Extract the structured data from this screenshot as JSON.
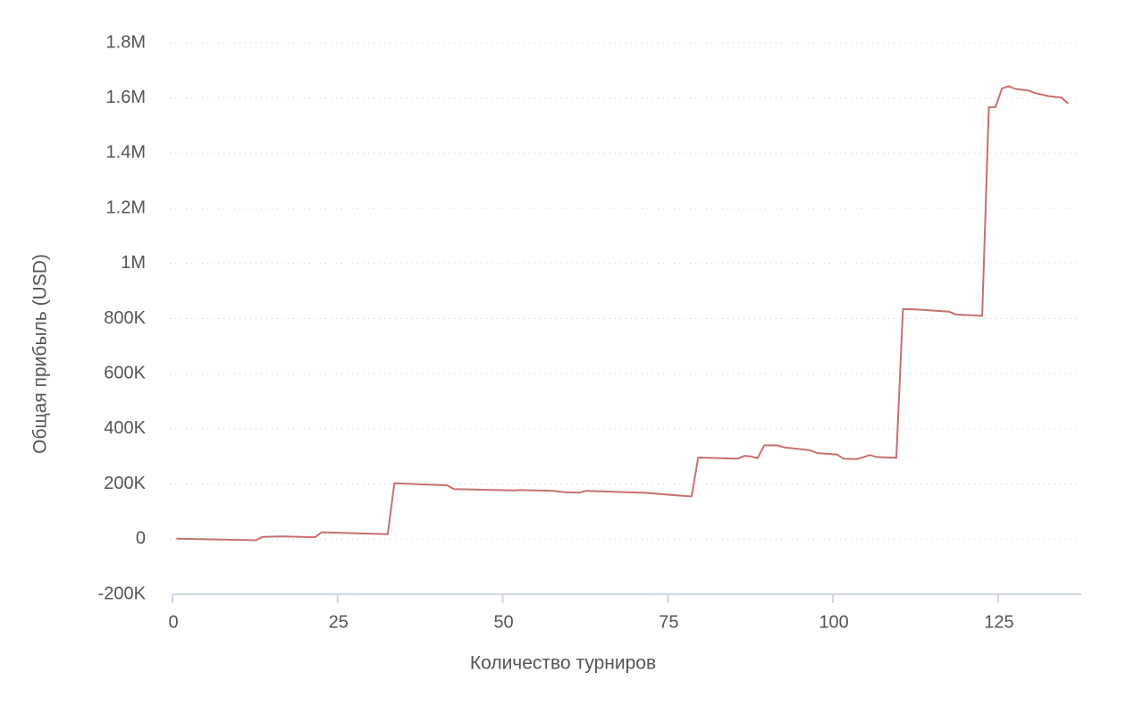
{
  "chart_data": {
    "type": "line",
    "x_label": "Количество турниров",
    "y_label": "Общая прибыль (USD)",
    "x": [
      1,
      13,
      14,
      17,
      22,
      23,
      33,
      34,
      42,
      43,
      52,
      53,
      58,
      60,
      62,
      63,
      72,
      75,
      79,
      80,
      86,
      87,
      88,
      89,
      90,
      92,
      93,
      96,
      97,
      98,
      101,
      102,
      104,
      106,
      107,
      110,
      111,
      113,
      118,
      119,
      123,
      124,
      125,
      126,
      127,
      128,
      130,
      131,
      133,
      135,
      136
    ],
    "series": [
      {
        "color": "#c87070",
        "values": [
          2000,
          -4000,
          8000,
          10000,
          7000,
          25000,
          18000,
          203000,
          195000,
          182000,
          177000,
          178000,
          175000,
          170000,
          169000,
          175000,
          168000,
          162000,
          155000,
          296000,
          292000,
          302000,
          300000,
          294000,
          340000,
          340000,
          333000,
          325000,
          322000,
          312000,
          307000,
          292000,
          290000,
          305000,
          298000,
          295000,
          835000,
          833000,
          825000,
          815000,
          810000,
          1567000,
          1567000,
          1635000,
          1643000,
          1633000,
          1627000,
          1618000,
          1607000,
          1602000,
          1580000
        ]
      }
    ],
    "xlim": [
      0,
      138
    ],
    "xticks": [
      0,
      25,
      50,
      75,
      100,
      125
    ],
    "ylim": [
      -200000,
      1800000
    ],
    "yticks": [
      {
        "value": -200000,
        "label": "-200K"
      },
      0,
      {
        "value": 200000,
        "label": "200K"
      },
      {
        "value": 400000,
        "label": "400K"
      },
      {
        "value": 600000,
        "label": "600K"
      },
      {
        "value": 800000,
        "label": "800K"
      },
      {
        "value": 1000000,
        "label": "1M"
      },
      {
        "value": 1200000,
        "label": "1.2M"
      },
      {
        "value": 1400000,
        "label": "1.4M"
      },
      {
        "value": 1600000,
        "label": "1.6M"
      },
      {
        "value": 1800000,
        "label": "1.8M"
      }
    ],
    "grid": true
  }
}
